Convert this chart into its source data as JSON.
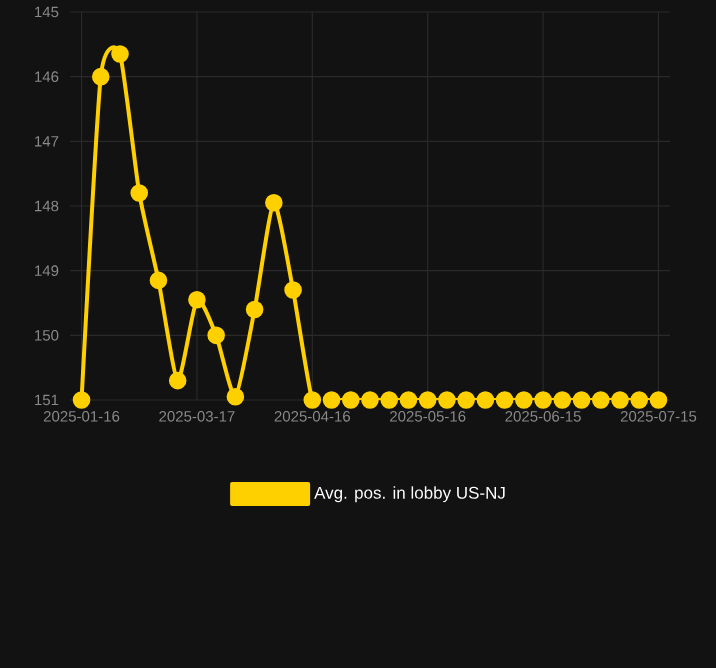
{
  "chart_data": {
    "type": "line",
    "categories": [
      "2025-01-16",
      null,
      null,
      null,
      null,
      null,
      "2025-03-17",
      null,
      null,
      null,
      null,
      null,
      "2025-04-16",
      null,
      null,
      null,
      null,
      null,
      "2025-05-16",
      null,
      null,
      null,
      null,
      null,
      "2025-06-15",
      null,
      null,
      null,
      null,
      null,
      "2025-07-15"
    ],
    "series": [
      {
        "name": "Avg. pos. in lobby US-NJ",
        "color": "#ffd000",
        "values": [
          151,
          146.0,
          145.65,
          147.8,
          149.15,
          150.7,
          149.45,
          150.0,
          150.95,
          149.6,
          147.95,
          149.3,
          151,
          151,
          151,
          151,
          151,
          151,
          151,
          151,
          151,
          151,
          151,
          151,
          151,
          151,
          151,
          151,
          151,
          151,
          151
        ]
      }
    ],
    "ylim": [
      151,
      145
    ],
    "yticks": [
      145,
      146,
      147,
      148,
      149,
      150,
      151
    ],
    "grid": true,
    "legend": "bottom",
    "marker": "circle",
    "line_style": "solid"
  }
}
